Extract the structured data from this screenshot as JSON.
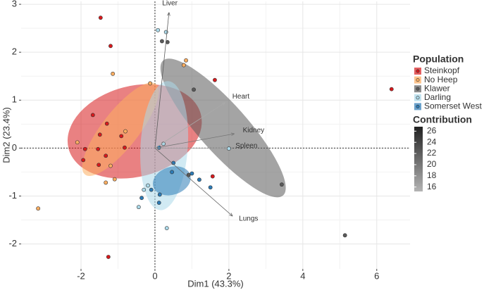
{
  "chart_data": {
    "type": "scatter",
    "xlabel": "Dim1 (43.3%)",
    "ylabel": "Dim2 (23.4%)",
    "xlim": [
      -3.62,
      6.9
    ],
    "ylim": [
      -2.52,
      3.06
    ],
    "xticks": [
      -2,
      0,
      2,
      4,
      6
    ],
    "yticks": [
      -2,
      -1,
      0,
      1,
      2,
      3
    ],
    "grid": true,
    "legend_title": "Population",
    "series": [
      {
        "name": "Steinkopf",
        "color": "#d7191c",
        "x": [
          -1.47,
          -1.2,
          1.62,
          6.4,
          -1.68,
          -1.3,
          -1.49,
          -1.89,
          -1.54,
          -1.94,
          -1.33,
          -1.52,
          1.56,
          -1.26,
          -0.91,
          -0.82
        ],
        "y": [
          2.72,
          2.13,
          1.42,
          1.23,
          0.69,
          0.51,
          0.28,
          -0.02,
          -0.02,
          -0.25,
          -0.16,
          -0.35,
          -0.59,
          -2.27,
          0.25,
          0.01
        ]
      },
      {
        "name": "No Heep",
        "color": "#fdae61",
        "x": [
          -1.14,
          0.84,
          0.78,
          -0.13,
          -2.1,
          -3.16,
          -1.2,
          -1.33,
          -1.09,
          -0.8
        ],
        "y": [
          1.55,
          1.83,
          1.73,
          1.35,
          0.12,
          -1.26,
          -0.37,
          -0.72,
          -0.65,
          0.35
        ]
      },
      {
        "name": "Klawer",
        "color": "#5a5a5a",
        "x": [
          0.19,
          1.05,
          3.43,
          5.14,
          0.34,
          0.91
        ],
        "y": [
          2.23,
          1.22,
          -0.76,
          -1.82,
          2.21,
          -0.56
        ]
      },
      {
        "name": "Darling",
        "color": "#abd9e9",
        "x": [
          0.08,
          0.3,
          2.0,
          0.32,
          -0.44,
          -0.3,
          -0.19,
          0.23
        ],
        "y": [
          2.46,
          2.42,
          -0.01,
          -1.67,
          -1.23,
          -0.87,
          -0.78,
          0.09
        ]
      },
      {
        "name": "Somerset West",
        "color": "#2c7bb6",
        "x": [
          1.5,
          1.2,
          0.46,
          0.13,
          0.11,
          -0.36,
          -0.1,
          0.11,
          0.5,
          1.0
        ],
        "y": [
          -0.82,
          -0.66,
          -0.5,
          -0.97,
          -1.14,
          -1.04,
          -0.87,
          0.01,
          -0.31,
          -0.53
        ]
      }
    ],
    "variables": {
      "title": "Contribution",
      "names": [
        "Liver",
        "Heart",
        "Kidney",
        "Spleen",
        "Lungs"
      ],
      "x": [
        0.38,
        1.9,
        2.15,
        1.95,
        2.1
      ],
      "y": [
        2.83,
        0.95,
        0.3,
        0.0,
        -1.42
      ],
      "contribution": [
        22,
        16,
        20,
        17,
        21
      ],
      "lim": [
        15.2,
        26.8
      ],
      "ticks": [
        16,
        18,
        20,
        22,
        24,
        26
      ]
    }
  }
}
